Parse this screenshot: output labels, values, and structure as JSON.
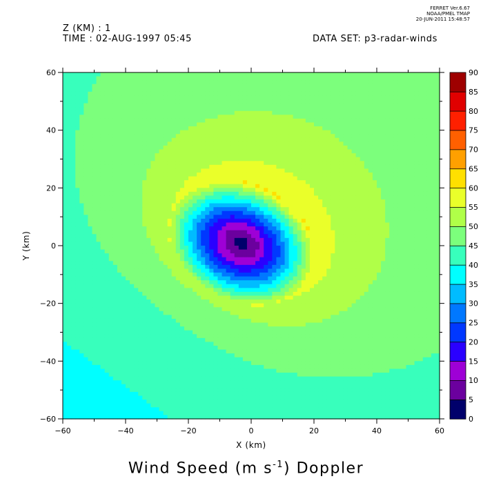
{
  "stamp": {
    "line1": "FERRET Ver.6.67",
    "line2": "NOAA/PMEL TMAP",
    "line3": "20-JUN-2011 15:48:57"
  },
  "header": {
    "z_label": "Z (KM) : 1",
    "time_label": "TIME : 02-AUG-1997 05:45",
    "dataset_label": "DATA SET: p3-radar-winds"
  },
  "chart_data": {
    "type": "heatmap",
    "title_text": "Wind Speed (m s",
    "title_exp": "-1",
    "title_tail": ") Doppler",
    "xlabel": "X (km)",
    "ylabel": "Y (km)",
    "xlim": [
      -60,
      60
    ],
    "ylim": [
      -60,
      60
    ],
    "x_ticks": [
      -60,
      -40,
      -20,
      0,
      20,
      40,
      60
    ],
    "y_ticks": [
      -60,
      -40,
      -20,
      0,
      20,
      40,
      60
    ],
    "x_tick_labels": [
      "−60",
      "−40",
      "−20",
      "0",
      "20",
      "40",
      "60"
    ],
    "y_tick_labels": [
      "−60",
      "−40",
      "−20",
      "0",
      "20",
      "40",
      "60"
    ],
    "colorbar": {
      "levels": [
        0,
        5,
        10,
        15,
        20,
        25,
        30,
        35,
        40,
        45,
        50,
        55,
        60,
        65,
        70,
        75,
        80,
        85,
        90
      ],
      "labels": [
        "0",
        "5",
        "10",
        "15",
        "20",
        "25",
        "30",
        "35",
        "40",
        "45",
        "50",
        "55",
        "60",
        "65",
        "70",
        "75",
        "80",
        "85",
        "90"
      ],
      "colors": [
        "#00006b",
        "#6b009e",
        "#9e00d6",
        "#2a00ff",
        "#0038ff",
        "#0078ff",
        "#00bcff",
        "#00ffff",
        "#38ffbc",
        "#7cff7c",
        "#b0ff48",
        "#eaff2a",
        "#ffe000",
        "#ffa000",
        "#ff6000",
        "#ff2000",
        "#e00000",
        "#9e0000"
      ]
    },
    "field": {
      "center_km": [
        -3,
        1
      ],
      "eye_radius_km": 13,
      "rmw_km": 25,
      "vmin_ms": 3,
      "vmax_ms": 58,
      "outer_ms": 37,
      "eye_elongation": 1.25,
      "eye_angle_deg": -35,
      "wedge_angle_deg": 50,
      "wedge_amplitude_ms": 4
    }
  }
}
